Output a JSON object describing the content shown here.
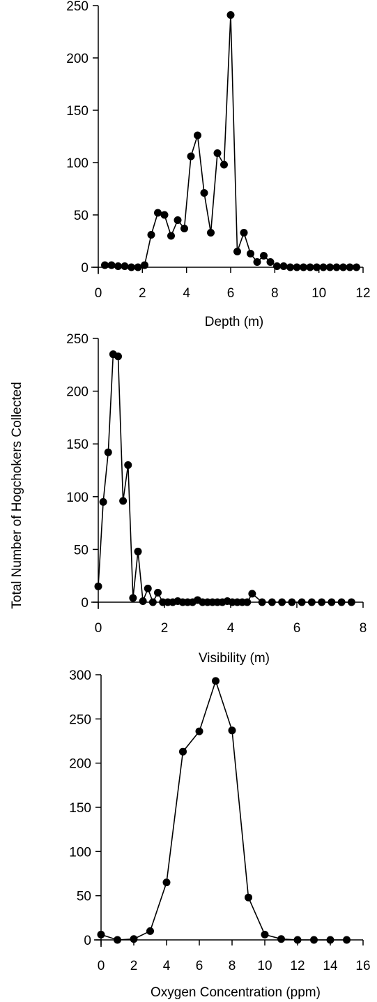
{
  "figure": {
    "ylabel": "Total Number of Hogchokers Collected"
  },
  "chart_data": [
    {
      "type": "line",
      "xlabel": "Depth (m)",
      "ylabel": "",
      "xlim": [
        0,
        12
      ],
      "ylim": [
        0,
        250
      ],
      "xticks": [
        "0",
        "2",
        "4",
        "6",
        "8",
        "10",
        "12"
      ],
      "yticks": [
        "0",
        "50",
        "100",
        "150",
        "200",
        "250"
      ],
      "grid": false,
      "series": [
        {
          "x": [
            0.3,
            0.6,
            0.9,
            1.2,
            1.5,
            1.8,
            2.1,
            2.4,
            2.7,
            3.0,
            3.3,
            3.6,
            3.9,
            4.2,
            4.5,
            4.8,
            5.1,
            5.4,
            5.7,
            6.0,
            6.3,
            6.6,
            6.9,
            7.2,
            7.5,
            7.8,
            8.1,
            8.4,
            8.7,
            9.0,
            9.3,
            9.6,
            9.9,
            10.2,
            10.5,
            10.8,
            11.1,
            11.4,
            11.7
          ],
          "y": [
            2,
            2,
            1,
            1,
            0,
            0,
            2,
            31,
            52,
            50,
            30,
            45,
            37,
            106,
            126,
            71,
            33,
            109,
            98,
            241,
            15,
            33,
            13,
            5,
            11,
            5,
            1,
            1,
            0,
            0,
            0,
            0,
            0,
            0,
            0,
            0,
            0,
            0,
            0
          ]
        }
      ]
    },
    {
      "type": "line",
      "xlabel": "Visibility (m)",
      "ylabel": "",
      "xlim": [
        0,
        8
      ],
      "ylim": [
        0,
        250
      ],
      "xticks": [
        "0",
        "2",
        "4",
        "6",
        "8"
      ],
      "yticks": [
        "0",
        "50",
        "100",
        "150",
        "200",
        "250"
      ],
      "grid": false,
      "series": [
        {
          "x": [
            0,
            0.15,
            0.3,
            0.45,
            0.6,
            0.75,
            0.9,
            1.05,
            1.2,
            1.35,
            1.5,
            1.65,
            1.8,
            1.95,
            2.1,
            2.25,
            2.4,
            2.55,
            2.7,
            2.85,
            3.0,
            3.15,
            3.3,
            3.45,
            3.6,
            3.75,
            3.9,
            4.05,
            4.2,
            4.35,
            4.5,
            4.65,
            4.95,
            5.25,
            5.55,
            5.85,
            6.15,
            6.45,
            6.75,
            7.05,
            7.35,
            7.65
          ],
          "y": [
            15,
            95,
            142,
            235,
            233,
            96,
            130,
            4,
            48,
            1,
            13,
            0,
            9,
            0,
            0,
            0,
            1,
            0,
            0,
            0,
            2,
            0,
            0,
            0,
            0,
            0,
            1,
            0,
            0,
            0,
            0,
            8,
            0,
            0,
            0,
            0,
            0,
            0,
            0,
            0,
            0,
            0
          ]
        }
      ]
    },
    {
      "type": "line",
      "xlabel": "Oxygen Concentration (ppm)",
      "ylabel": "",
      "xlim": [
        0,
        16
      ],
      "ylim": [
        0,
        300
      ],
      "xticks": [
        "0",
        "2",
        "4",
        "6",
        "8",
        "10",
        "12",
        "14",
        "16"
      ],
      "yticks": [
        "0",
        "50",
        "100",
        "150",
        "200",
        "250",
        "300"
      ],
      "grid": false,
      "series": [
        {
          "x": [
            0,
            1,
            2,
            3,
            4,
            5,
            6,
            7,
            8,
            9,
            10,
            11,
            12,
            13,
            14,
            15
          ],
          "y": [
            6,
            0,
            1,
            10,
            65,
            213,
            236,
            293,
            237,
            48,
            6,
            1,
            0,
            0,
            0,
            0
          ]
        }
      ]
    }
  ]
}
